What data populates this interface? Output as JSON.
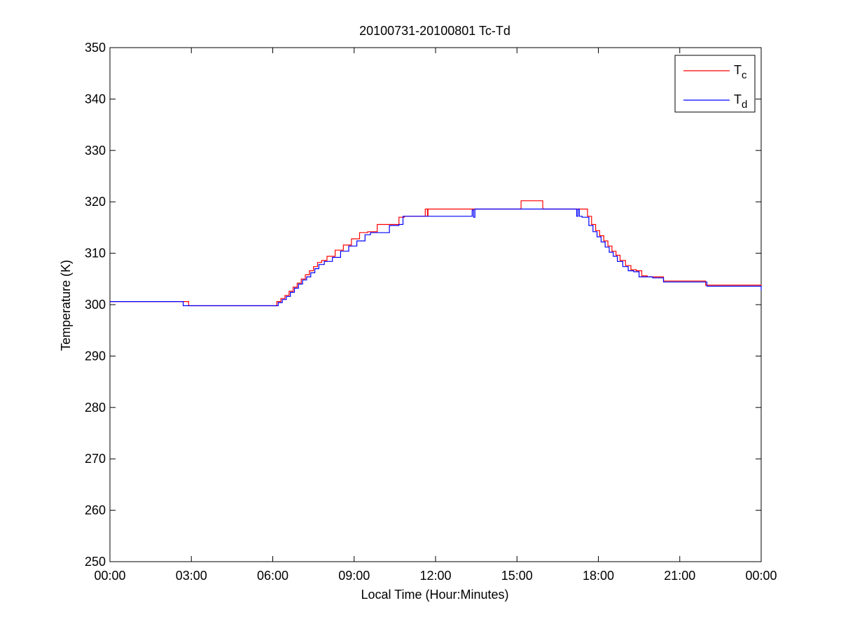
{
  "chart_data": {
    "type": "line",
    "title": "20100731-20100801 Tc-Td",
    "xlabel": "Local Time (Hour:Minutes)",
    "ylabel": "Temperature (K)",
    "xlim": [
      0,
      24
    ],
    "ylim": [
      250,
      350
    ],
    "x_tick_values": [
      0,
      3,
      6,
      9,
      12,
      15,
      18,
      21,
      24
    ],
    "x_tick_labels": [
      "00:00",
      "03:00",
      "06:00",
      "09:00",
      "12:00",
      "15:00",
      "18:00",
      "21:00",
      "00:00"
    ],
    "y_tick_values": [
      250,
      260,
      270,
      280,
      290,
      300,
      310,
      320,
      330,
      340,
      350
    ],
    "y_tick_labels": [
      "250",
      "260",
      "270",
      "280",
      "290",
      "300",
      "310",
      "320",
      "330",
      "340",
      "350"
    ],
    "grid": false,
    "legend_position": "top-right",
    "series": [
      {
        "name": "T",
        "subscript": "c",
        "color": "#ff0000",
        "x": [
          0,
          2.6,
          2.9,
          6.0,
          6.15,
          6.3,
          6.45,
          6.6,
          6.75,
          6.9,
          7.05,
          7.2,
          7.35,
          7.5,
          7.65,
          7.8,
          8.0,
          8.3,
          8.6,
          8.9,
          9.2,
          9.5,
          9.85,
          10.3,
          10.65,
          10.85,
          11.6,
          11.62,
          11.7,
          11.72,
          11.95,
          13.4,
          15.15,
          15.95,
          17.2,
          17.6,
          17.75,
          17.9,
          18.05,
          18.2,
          18.35,
          18.5,
          18.65,
          18.8,
          19.0,
          19.2,
          19.4,
          19.6,
          19.8,
          20.05,
          20.4,
          20.8,
          21.2,
          21.95,
          23.75,
          24.0
        ],
        "y": [
          300.6,
          300.6,
          299.8,
          299.8,
          300.6,
          301.2,
          301.8,
          302.6,
          303.4,
          304.2,
          305.0,
          305.8,
          306.6,
          307.4,
          308.2,
          308.6,
          309.4,
          310.6,
          311.6,
          312.8,
          314.0,
          314.2,
          315.6,
          315.6,
          317.0,
          317.2,
          317.2,
          318.6,
          317.2,
          318.6,
          318.6,
          318.6,
          320.2,
          318.6,
          318.6,
          317.2,
          315.6,
          314.4,
          313.4,
          312.4,
          311.4,
          310.4,
          309.6,
          308.6,
          307.6,
          306.8,
          306.6,
          305.6,
          305.4,
          305.4,
          304.6,
          304.6,
          304.6,
          303.8,
          303.8,
          303.6
        ]
      },
      {
        "name": "T",
        "subscript": "d",
        "color": "#0000ff",
        "x": [
          0,
          2.6,
          2.7,
          6.05,
          6.2,
          6.35,
          6.5,
          6.65,
          6.8,
          6.95,
          7.1,
          7.25,
          7.4,
          7.55,
          7.7,
          7.9,
          8.2,
          8.5,
          8.8,
          9.1,
          9.4,
          9.6,
          9.8,
          10.3,
          10.65,
          10.8,
          13.3,
          13.35,
          13.4,
          13.45,
          13.5,
          17.15,
          17.2,
          17.25,
          17.3,
          17.4,
          17.65,
          17.8,
          17.95,
          18.1,
          18.25,
          18.4,
          18.55,
          18.7,
          18.9,
          19.1,
          19.3,
          19.5,
          19.75,
          20.0,
          20.4,
          20.7,
          21.1,
          21.5,
          22.0,
          23.75,
          24.0
        ],
        "y": [
          300.6,
          300.6,
          299.8,
          299.8,
          300.4,
          301.0,
          301.6,
          302.4,
          303.2,
          304.0,
          304.8,
          305.4,
          306.2,
          307.0,
          307.8,
          308.4,
          309.2,
          310.4,
          311.4,
          312.4,
          313.6,
          314.0,
          314.0,
          315.4,
          315.6,
          317.2,
          317.2,
          318.4,
          317.0,
          318.6,
          318.6,
          318.6,
          317.2,
          318.6,
          317.2,
          317.0,
          315.4,
          314.2,
          313.2,
          312.2,
          311.2,
          310.2,
          309.4,
          308.4,
          307.4,
          306.6,
          306.4,
          305.4,
          305.4,
          305.2,
          304.4,
          304.4,
          304.4,
          304.4,
          303.6,
          303.6,
          302.8
        ]
      }
    ]
  }
}
